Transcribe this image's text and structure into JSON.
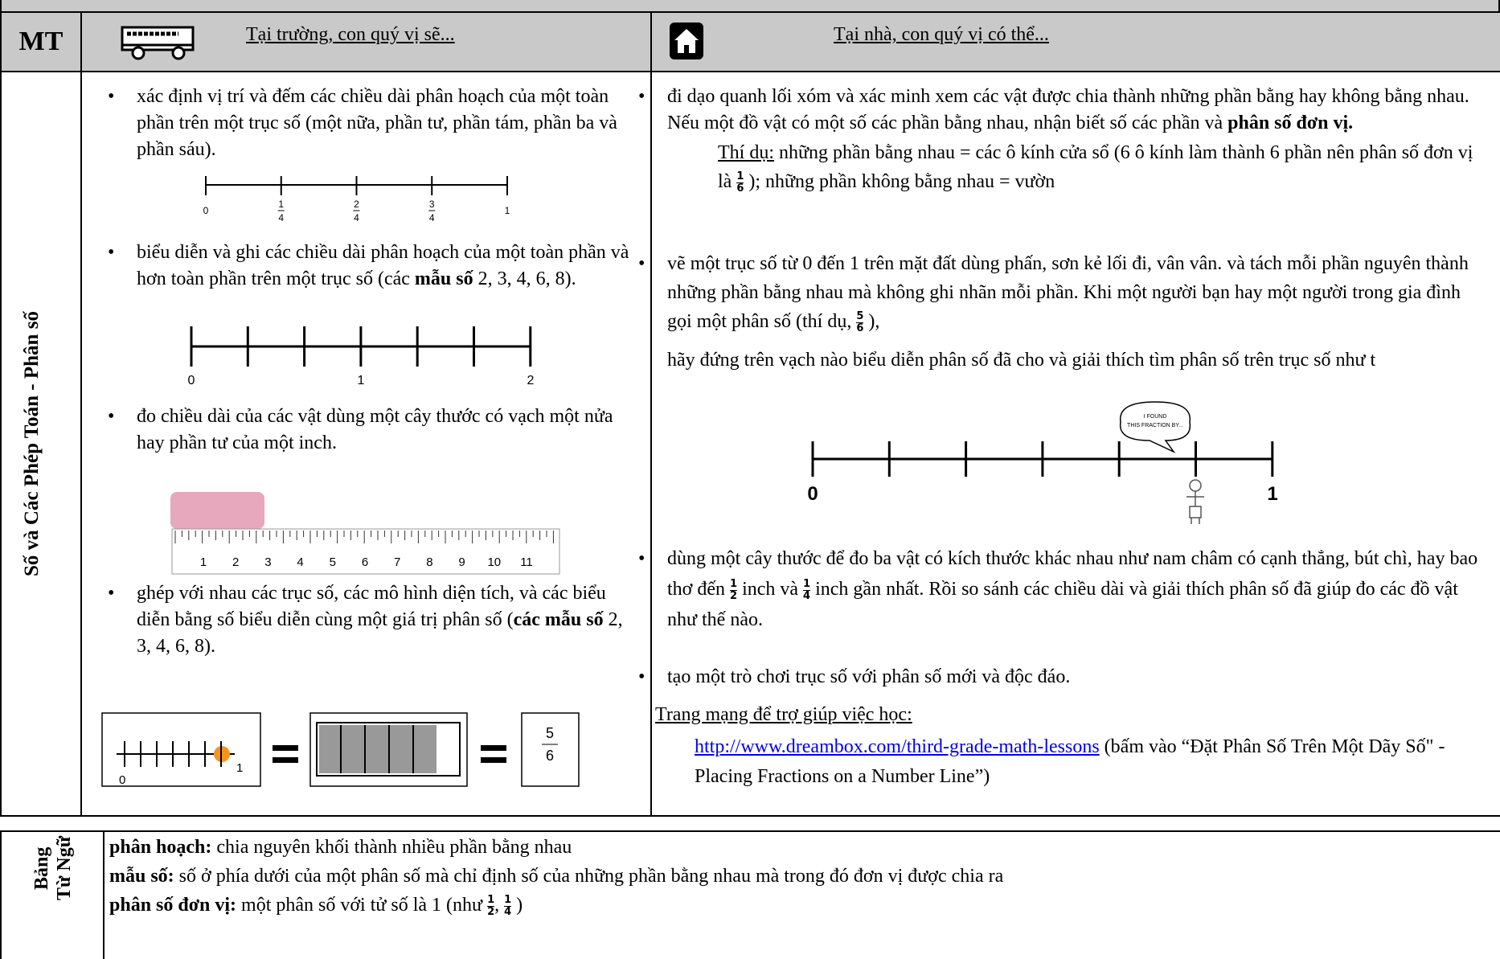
{
  "header": {
    "code": "MT",
    "school_heading": "Tại trường, con quý vị sẽ...",
    "home_heading": "Tại nhà, con quý vị có thể..."
  },
  "topic": "Số và Các Phép Toán - Phân số",
  "school": {
    "b1": "xác định vị trí và đếm các chiều dài phân hoạch của một toàn phần trên một trục số (một nữa, phần tư, phần tám, phần ba và phần sáu).",
    "line1_labels": [
      {
        "num": "0"
      },
      {
        "num": "1",
        "den": "4"
      },
      {
        "num": "2",
        "den": "4"
      },
      {
        "num": "3",
        "den": "4"
      },
      {
        "num": "1"
      }
    ],
    "b2": [
      "biểu diễn và ghi các chiều dài phân hoạch của một toàn phần và hơn toàn phần trên một trục số (các ",
      "mẫu số",
      " 2, 3, 4, 6, 8)."
    ],
    "line2_labels": [
      "0",
      "1",
      "2"
    ],
    "b3": "đo chiều dài của các vật dùng một cây thước có vạch một nửa hay phần tư của một inch.",
    "ruler_labels": [
      "1",
      "2",
      "3",
      "4",
      "5",
      "6",
      "7",
      "8",
      "9",
      "10",
      "11"
    ],
    "b4": [
      "ghép với nhau các trục số, các mô hình diện tích, và các biểu diễn bằng số biểu diễn cùng một giá trị phân số (",
      "các mẫu số",
      " 2, 3, 4, 6, 8)."
    ],
    "model_labels": [
      "0",
      "1"
    ],
    "model_fraction": {
      "num": "5",
      "den": "6"
    }
  },
  "home": {
    "r1": [
      "đi dạo quanh lối xóm và xác minh xem các vật được chia thành những phần bằng hay không bằng nhau.  Nếu một đồ vật có một số các phần bằng nhau, nhận biết số các phần và ",
      "phân số đơn vị."
    ],
    "example": [
      "Thí dụ:",
      " những phần bằng nhau = các ô kính cửa sổ (6 ô kính làm thành 6 phần nên phân số đơn vị là ",
      {
        "num": "1",
        "den": "6"
      },
      " ); những phần không bằng nhau = vườn"
    ],
    "r2": [
      "vẽ một trục số từ 0 đến 1 trên mặt đất dùng phấn, sơn kẻ lối đi, vân vân. và tách mỗi phần nguyên thành những phần bằng nhau mà không ghi nhãn mỗi phần. Khi một người bạn hay một người trong gia đình gọi một phân số (thí dụ, ",
      {
        "num": "5",
        "den": "6"
      },
      " ),",
      "hãy đứng trên vạch nào biểu diễn phân số đã cho và giải thích tìm phân số trên trục số như t"
    ],
    "bubble": "I FOUND THIS FRACTION BY...",
    "line_labels": [
      "0",
      "1"
    ],
    "r3": [
      "dùng một cây thước để đo ba vật có kích thước khác nhau như nam châm có cạnh thẳng, bút chì, hay bao thơ đến ",
      {
        "num": "1",
        "den": "2"
      },
      " inch và ",
      {
        "num": "1",
        "den": "4"
      },
      " inch gần nhất.  Rồi so sánh các chiều dài và giải thích phân số đã giúp đo các đồ vật như thế nào."
    ],
    "r4": "tạo một trò chơi trục số với phân số mới và độc đáo.",
    "resources": "Trang mạng để trợ giúp việc học:",
    "link": "http://www.dreambox.com/third-grade-math-lessons",
    "link_note": "  (bấm vào “Đặt Phân Số Trên Một Dãy Số\" -Placing Fractions on a Number Line”)"
  },
  "vocab": {
    "label": [
      "Bảng",
      "Từ Ngữ"
    ],
    "entries": [
      [
        "phân hoạch:",
        " chia nguyên khối thành nhiều phần bằng nhau"
      ],
      [
        "mẫu số:",
        " số ở phía dưới của một phân số mà chỉ định số của những phần bằng nhau mà trong đó đơn vị được chia ra"
      ],
      [
        "phân số đơn vị:",
        " một phân số với tử số là 1 (như ",
        {
          "num": "1",
          "den": "2"
        },
        ", ",
        {
          "num": "1",
          "den": "4"
        },
        " )"
      ]
    ]
  }
}
